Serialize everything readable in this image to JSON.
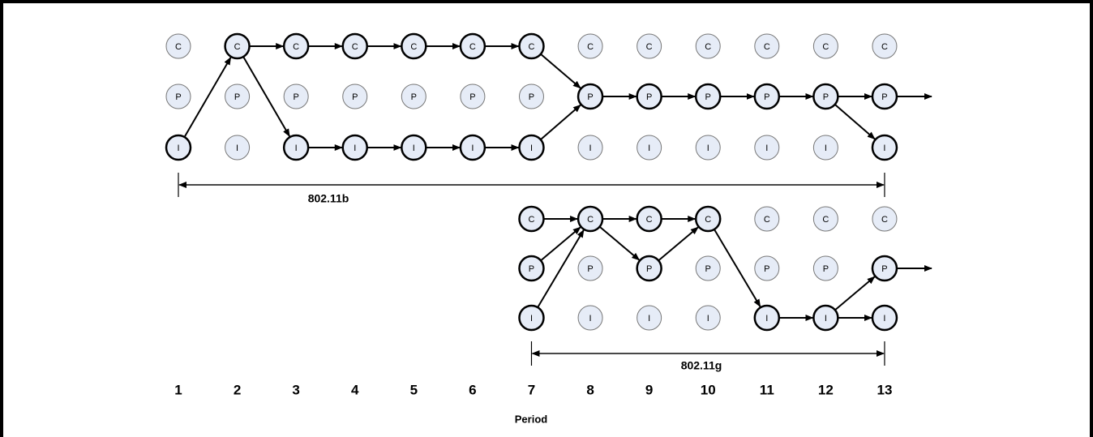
{
  "states": [
    "C",
    "P",
    "I"
  ],
  "periods": [
    "1",
    "2",
    "3",
    "4",
    "5",
    "6",
    "7",
    "8",
    "9",
    "10",
    "11",
    "12",
    "13"
  ],
  "axis_label": "Period",
  "networks": [
    {
      "label": "802.11b"
    },
    {
      "label": "802.11g"
    }
  ]
}
